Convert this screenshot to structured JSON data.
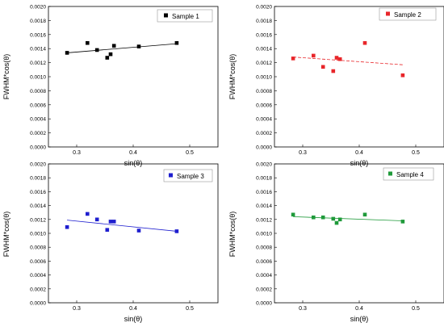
{
  "chart_data": [
    {
      "type": "scatter",
      "title": "",
      "xlabel": "sin(θ)",
      "ylabel": "FWHM*cos(θ)",
      "xlim": [
        0.25,
        0.55
      ],
      "ylim": [
        0,
        0.002
      ],
      "x_ticks": [
        "0.3",
        "0.4",
        "0.5"
      ],
      "y_ticks": [
        "0.0000",
        "0.0002",
        "0.0004",
        "0.0006",
        "0.0008",
        "0.0010",
        "0.0012",
        "0.0014",
        "0.0016",
        "0.0018",
        "0.0020"
      ],
      "grid": false,
      "legend": "top-right",
      "series": [
        {
          "name": "Sample 1",
          "color": "#000000",
          "marker": "square",
          "fit_line_style": "solid",
          "x": [
            0.283,
            0.319,
            0.336,
            0.354,
            0.36,
            0.366,
            0.41,
            0.477
          ],
          "y": [
            0.00134,
            0.00148,
            0.00138,
            0.00127,
            0.00132,
            0.00144,
            0.00143,
            0.00148
          ],
          "fit": [
            [
              0.283,
              0.00134
            ],
            [
              0.477,
              0.00147
            ]
          ]
        }
      ]
    },
    {
      "type": "scatter",
      "title": "",
      "xlabel": "sin(θ)",
      "ylabel": "FWHM*cos(θ)",
      "xlim": [
        0.25,
        0.55
      ],
      "ylim": [
        0,
        0.002
      ],
      "x_ticks": [
        "0.3",
        "0.4",
        "0.5"
      ],
      "y_ticks": [
        "0.0000",
        "0.0002",
        "0.0004",
        "0.0006",
        "0.0008",
        "0.0010",
        "0.0012",
        "0.0014",
        "0.0016",
        "0.0018",
        "0.0020"
      ],
      "grid": false,
      "legend": "top-right",
      "series": [
        {
          "name": "Sample 2",
          "color": "#e8262a",
          "marker": "square",
          "fit_line_style": "dashed",
          "x": [
            0.283,
            0.319,
            0.336,
            0.354,
            0.36,
            0.366,
            0.41,
            0.477
          ],
          "y": [
            0.00126,
            0.0013,
            0.00114,
            0.00108,
            0.00127,
            0.00125,
            0.00148,
            0.00102
          ],
          "fit": [
            [
              0.283,
              0.00128
            ],
            [
              0.477,
              0.00117
            ]
          ]
        }
      ]
    },
    {
      "type": "scatter",
      "title": "",
      "xlabel": "sin(θ)",
      "ylabel": "FWHM*cos(θ)",
      "xlim": [
        0.25,
        0.55
      ],
      "ylim": [
        0,
        0.002
      ],
      "x_ticks": [
        "0.3",
        "0.4",
        "0.5"
      ],
      "y_ticks": [
        "0.0000",
        "0.0002",
        "0.0004",
        "0.0006",
        "0.0008",
        "0.0010",
        "0.0012",
        "0.0014",
        "0.0016",
        "0.0018",
        "0.0020"
      ],
      "grid": false,
      "legend": "top-right",
      "series": [
        {
          "name": "Sample 3",
          "color": "#1f1fcf",
          "marker": "square",
          "fit_line_style": "solid",
          "x": [
            0.283,
            0.319,
            0.336,
            0.354,
            0.36,
            0.366,
            0.41,
            0.477
          ],
          "y": [
            0.00109,
            0.00128,
            0.0012,
            0.00105,
            0.00117,
            0.00117,
            0.00104,
            0.00103
          ],
          "fit": [
            [
              0.283,
              0.00119
            ],
            [
              0.477,
              0.00103
            ]
          ]
        }
      ]
    },
    {
      "type": "scatter",
      "title": "",
      "xlabel": "sin(θ)",
      "ylabel": "FWHM*cos(θ)",
      "xlim": [
        0.25,
        0.55
      ],
      "ylim": [
        0,
        0.002
      ],
      "x_ticks": [
        "0.3",
        "0.4",
        "0.5"
      ],
      "y_ticks": [
        "0.0000",
        "0.0002",
        "0.0004",
        "0.0006",
        "0.0008",
        "0.0010",
        "0.0012",
        "0.0014",
        "0.0016",
        "0.0018",
        "0.0020"
      ],
      "grid": false,
      "legend": "top-right",
      "series": [
        {
          "name": "Sample 4",
          "color": "#1f9a3a",
          "marker": "square",
          "fit_line_style": "solid",
          "x": [
            0.283,
            0.319,
            0.336,
            0.354,
            0.36,
            0.366,
            0.41,
            0.477
          ],
          "y": [
            0.00127,
            0.00123,
            0.00123,
            0.00121,
            0.00115,
            0.0012,
            0.00127,
            0.00117
          ],
          "fit": [
            [
              0.283,
              0.00124
            ],
            [
              0.477,
              0.00118
            ]
          ]
        }
      ]
    }
  ]
}
